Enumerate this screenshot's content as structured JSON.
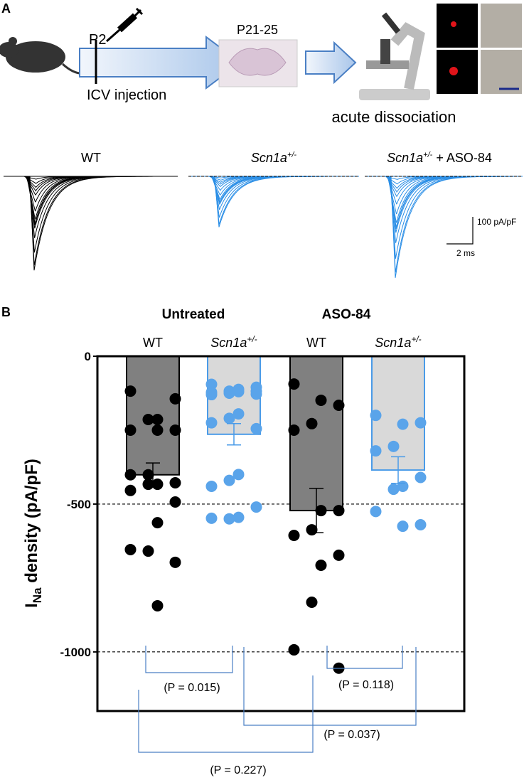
{
  "panel_a": {
    "label": "A",
    "timepoint_injection": "P2",
    "injection": "ICV injection",
    "timepoint_recording": "P21-25",
    "method": "acute dissociation",
    "trace_titles": [
      {
        "main": "WT"
      },
      {
        "main": "Scn1a",
        "sup": "+/-"
      },
      {
        "main": "Scn1a",
        "sup": "+/-",
        "rest": " + ASO-84"
      }
    ],
    "scale_y": "100 pA/pF",
    "scale_x": "2 ms"
  },
  "chart_data": {
    "type": "bar",
    "panel_label": "B",
    "y_label": {
      "main": "I",
      "sub": "Na",
      "rest": " density (pA/pF)"
    },
    "groups": [
      "Untreated",
      "ASO-84"
    ],
    "ylim": [
      -1200,
      0
    ],
    "yticks": [
      0,
      -500,
      -1000
    ],
    "grid": true,
    "bars": [
      {
        "label": "WT",
        "mean": -401,
        "sem": 40,
        "fill": "#808080",
        "edge": "#000000",
        "dot": "#000000",
        "points": [
          -118,
          -144,
          -214,
          -214,
          -250,
          -250,
          -250,
          -401,
          -401,
          -428,
          -433,
          -433,
          -454,
          -493,
          -563,
          -659,
          -654,
          -697,
          -844
        ]
      },
      {
        "label": "Scn1a",
        "label_sup": "+/-",
        "mean": -264,
        "sem": 36,
        "fill": "#d9d9d9",
        "edge": "#4a9be8",
        "dot": "#5aa4ea",
        "points": [
          -95,
          -105,
          -112,
          -125,
          -130,
          -128,
          -120,
          -118,
          -122,
          -118,
          -195,
          -210,
          -225,
          -245,
          -400,
          -420,
          -440,
          -510,
          -545,
          -550,
          -548
        ]
      },
      {
        "label": "WT",
        "mean": -522,
        "sem": 75,
        "fill": "#808080",
        "edge": "#000000",
        "dot": "#000000",
        "points": [
          -94,
          -166,
          -149,
          -228,
          -250,
          -522,
          -522,
          -587,
          -606,
          -673,
          -707,
          -832,
          -993,
          -1055
        ]
      },
      {
        "label": "Scn1a",
        "label_sup": "+/-",
        "mean": -385,
        "sem": 45,
        "fill": "#d9d9d9",
        "edge": "#4a9be8",
        "dot": "#5aa4ea",
        "points": [
          -200,
          -225,
          -230,
          -305,
          -320,
          -410,
          -440,
          -450,
          -525,
          -570,
          -575
        ]
      }
    ],
    "comparisons": [
      {
        "bars": [
          0,
          1
        ],
        "label": "(P = 0.015)"
      },
      {
        "bars": [
          2,
          3
        ],
        "label": "(P = 0.118)"
      },
      {
        "bars": [
          1,
          3
        ],
        "label": "(P = 0.037)"
      },
      {
        "bars": [
          0,
          2
        ],
        "label": "(P = 0.227)"
      }
    ]
  }
}
